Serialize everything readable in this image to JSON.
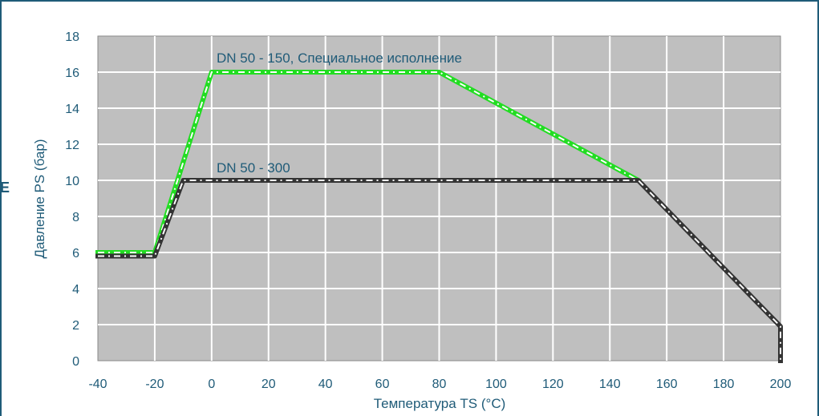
{
  "page": {
    "edge_glyph": "E"
  },
  "chart_data": {
    "type": "line",
    "xlabel": "Температура TS (°C)",
    "ylabel": "Давление PS (бар)",
    "xlim": [
      -40,
      200
    ],
    "ylim": [
      0,
      18
    ],
    "x_ticks": [
      -40,
      -20,
      0,
      20,
      40,
      60,
      80,
      100,
      120,
      140,
      160,
      180,
      200
    ],
    "y_ticks": [
      0,
      2,
      4,
      6,
      8,
      10,
      12,
      14,
      16,
      18
    ],
    "grid": true,
    "legend": "none",
    "colors": {
      "plot_background": "#bfbfbf",
      "grid": "#ffffff",
      "text": "#1f5b78",
      "frame": "#1f5b78",
      "series_green": "#22dd22",
      "series_black": "#333333"
    },
    "series": [
      {
        "name": "DN 50 - 150, Специальное исполнение",
        "color": "#22dd22",
        "points": [
          [
            -40,
            6.0
          ],
          [
            -20,
            6.0
          ],
          [
            0,
            16.0
          ],
          [
            80,
            16.0
          ],
          [
            150,
            10.0
          ]
        ]
      },
      {
        "name": "DN 50 - 300",
        "color": "#333333",
        "points": [
          [
            -40,
            5.8
          ],
          [
            -20,
            5.8
          ],
          [
            -10,
            10.0
          ],
          [
            150,
            10.0
          ],
          [
            200,
            1.9
          ],
          [
            200,
            0.0
          ]
        ]
      }
    ]
  }
}
